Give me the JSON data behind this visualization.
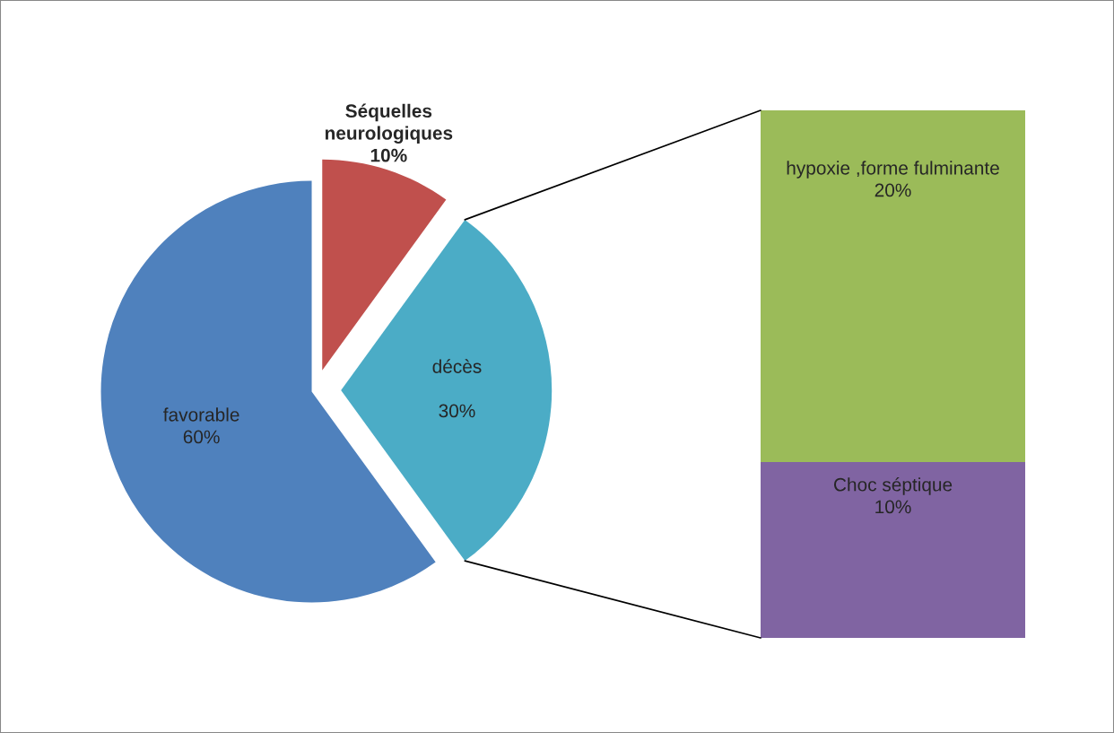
{
  "chart_data": [
    {
      "type": "pie",
      "categories": [
        "Séquelles\nneurologiques",
        "décès",
        "favorable"
      ],
      "values": [
        10,
        30,
        60
      ],
      "colors": [
        "#c0504d",
        "#4bacc6",
        "#4f81bd"
      ],
      "value_labels": [
        "10%",
        "30%",
        "60%"
      ]
    },
    {
      "type": "bar",
      "stacked": true,
      "categories": [
        null
      ],
      "series": [
        {
          "name": "Choc séptique",
          "color": "#8064a2",
          "values": [
            10
          ],
          "value_labels": [
            "10%"
          ]
        },
        {
          "name": "hypoxie ,forme fulminante",
          "color": "#9bbb59",
          "values": [
            20
          ],
          "value_labels": [
            "20%"
          ]
        }
      ]
    }
  ]
}
